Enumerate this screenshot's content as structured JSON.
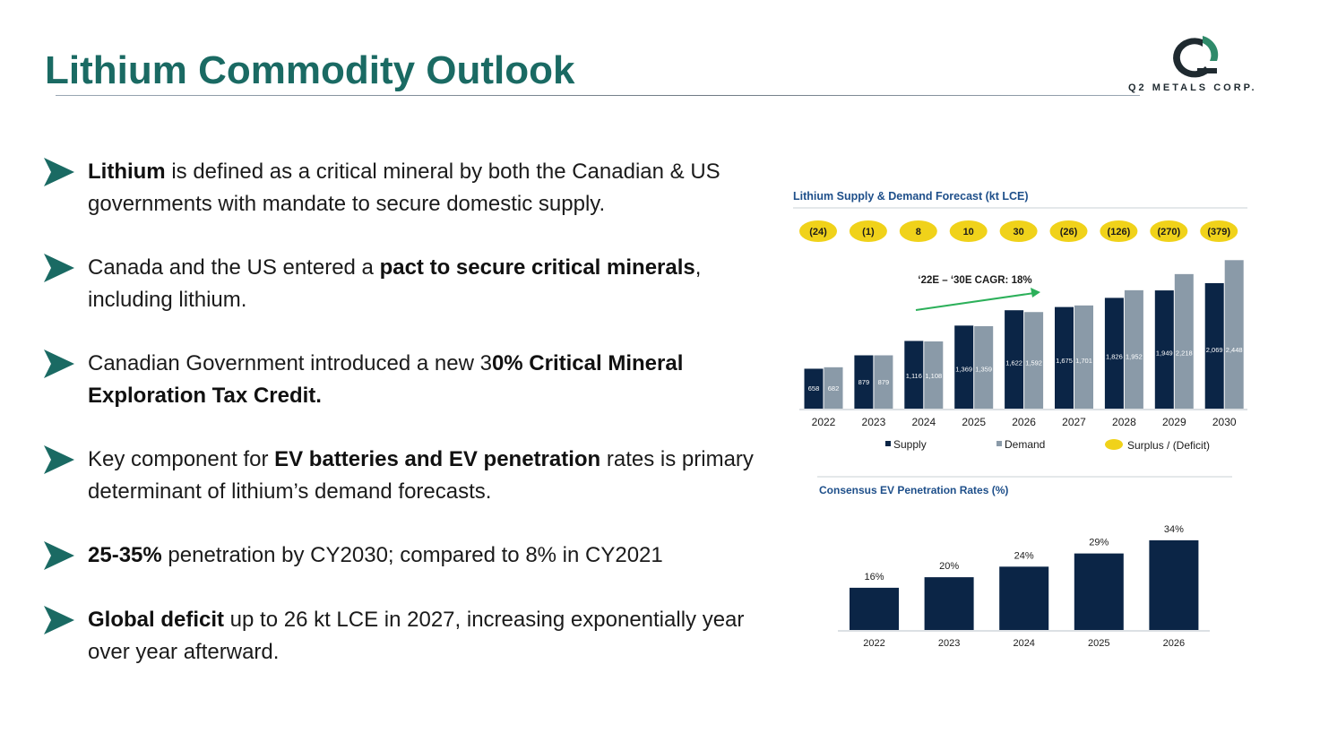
{
  "page": {
    "title": "Lithium Commodity Outlook"
  },
  "logo": {
    "company": "Q2 METALS CORP.",
    "colors": {
      "ring": "#1f2a30",
      "accent": "#2f8a6a"
    }
  },
  "colors": {
    "title": "#1a6a63",
    "bullet_arrow": "#1a6a63",
    "supply": "#0b2546",
    "demand": "#8a9aa8",
    "surplus_pill": "#f0d21a",
    "ev_bar": "#0b2546",
    "cagr_arrow": "#2cb05a"
  },
  "bullets": [
    {
      "segments": [
        {
          "text": "Lithium",
          "bold": true
        },
        {
          "text": " is defined as a critical mineral by both the Canadian & US governments with mandate to secure domestic supply.",
          "bold": false
        }
      ]
    },
    {
      "segments": [
        {
          "text": "Canada and the US entered a ",
          "bold": false
        },
        {
          "text": "pact to secure critical minerals",
          "bold": true
        },
        {
          "text": ", including lithium.",
          "bold": false
        }
      ]
    },
    {
      "segments": [
        {
          "text": "Canadian Government introduced a new 3",
          "bold": false
        },
        {
          "text": "0% Critical Mineral Exploration Tax Credit.",
          "bold": true
        }
      ]
    },
    {
      "segments": [
        {
          "text": "Key component for ",
          "bold": false
        },
        {
          "text": "EV batteries and EV penetration",
          "bold": true
        },
        {
          "text": " rates is primary determinant of lithium’s demand forecasts.",
          "bold": false
        }
      ]
    },
    {
      "segments": [
        {
          "text": "25-35%",
          "bold": true
        },
        {
          "text": " penetration by CY2030; compared to 8% in CY2021",
          "bold": false
        }
      ]
    },
    {
      "segments": [
        {
          "text": "Global deficit",
          "bold": true
        },
        {
          "text": " up to 26 kt LCE in 2027, increasing exponentially year over year afterward.",
          "bold": false
        }
      ]
    }
  ],
  "chart_data": [
    {
      "type": "bar",
      "title": "Lithium Supply & Demand Forecast (kt LCE)",
      "annotation": "‘22E – ‘30E CAGR: 18%",
      "categories": [
        "2022",
        "2023",
        "2024",
        "2025",
        "2026",
        "2027",
        "2028",
        "2029",
        "2030"
      ],
      "series": [
        {
          "name": "Supply",
          "values": [
            658,
            879,
            1116,
            1369,
            1622,
            1675,
            1826,
            1949,
            2069
          ],
          "labels": [
            "658",
            "879",
            "1,116",
            "1,369",
            "1,622",
            "1,675",
            "1,826",
            "1,949",
            "2,069"
          ]
        },
        {
          "name": "Demand",
          "values": [
            682,
            879,
            1108,
            1359,
            1592,
            1701,
            1952,
            2218,
            2448
          ],
          "labels": [
            "682",
            "879",
            "1,108",
            "1,359",
            "1,592",
            "1,701",
            "1,952",
            "2,218",
            "2,448"
          ]
        }
      ],
      "surplus_deficit": {
        "name": "Surplus / (Deficit)",
        "labels": [
          "(24)",
          "(1)",
          "8",
          "10",
          "30",
          "(26)",
          "(126)",
          "(270)",
          "(379)"
        ]
      },
      "ylim": [
        0,
        2600
      ],
      "legend": "bottom"
    },
    {
      "type": "bar",
      "title": "Consensus EV Penetration Rates (%)",
      "categories": [
        "2022",
        "2023",
        "2024",
        "2025",
        "2026"
      ],
      "values": [
        16,
        20,
        24,
        29,
        34
      ],
      "labels": [
        "16%",
        "20%",
        "24%",
        "29%",
        "34%"
      ],
      "ylim": [
        0,
        36
      ]
    }
  ]
}
